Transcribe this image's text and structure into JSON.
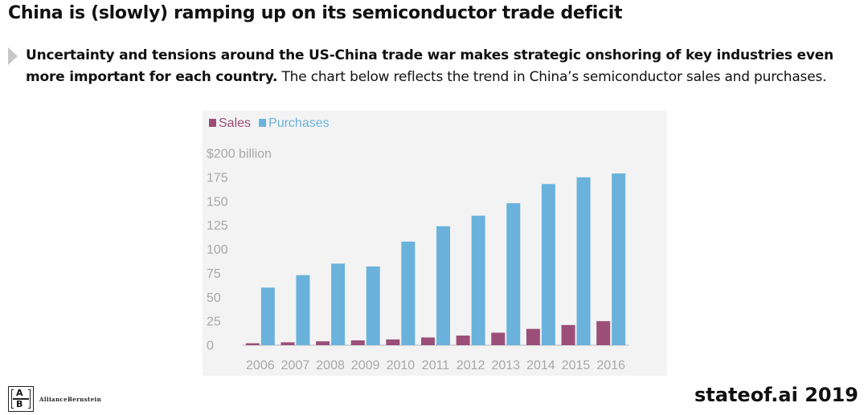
{
  "title": "China is (slowly) ramping up on its semiconductor trade deficit",
  "bullet": {
    "bold_text": "Uncertainty and tensions around the US-China trade war makes strategic onshoring of key industries even more important for each country.",
    "regular_text": " The chart below reflects the trend in China’s semiconductor sales and purchases."
  },
  "chart_data": {
    "type": "bar",
    "categories": [
      "2006",
      "2007",
      "2008",
      "2009",
      "2010",
      "2011",
      "2012",
      "2013",
      "2014",
      "2015",
      "2016"
    ],
    "series": [
      {
        "name": "Sales",
        "color": "#9b4f78",
        "values": [
          2,
          3,
          4,
          5,
          6,
          8,
          10,
          13,
          17,
          21,
          25
        ]
      },
      {
        "name": "Purchases",
        "color": "#6ab2dc",
        "values": [
          60,
          73,
          85,
          82,
          108,
          124,
          135,
          148,
          168,
          175,
          179
        ]
      }
    ],
    "ylim": [
      0,
      200
    ],
    "yticks": [
      {
        "value": 0,
        "label": "0"
      },
      {
        "value": 25,
        "label": "25"
      },
      {
        "value": 50,
        "label": "50"
      },
      {
        "value": 75,
        "label": "75"
      },
      {
        "value": 100,
        "label": "100"
      },
      {
        "value": 125,
        "label": "125"
      },
      {
        "value": 150,
        "label": "150"
      },
      {
        "value": 175,
        "label": "175"
      },
      {
        "value": 200,
        "label": "$200 billion"
      }
    ],
    "legend_position": "top-left",
    "grid": false
  },
  "footer": {
    "logo_name": "AllianceBernstein",
    "logo_letters": [
      "A",
      "B"
    ],
    "brand": "stateof.ai 2019"
  }
}
